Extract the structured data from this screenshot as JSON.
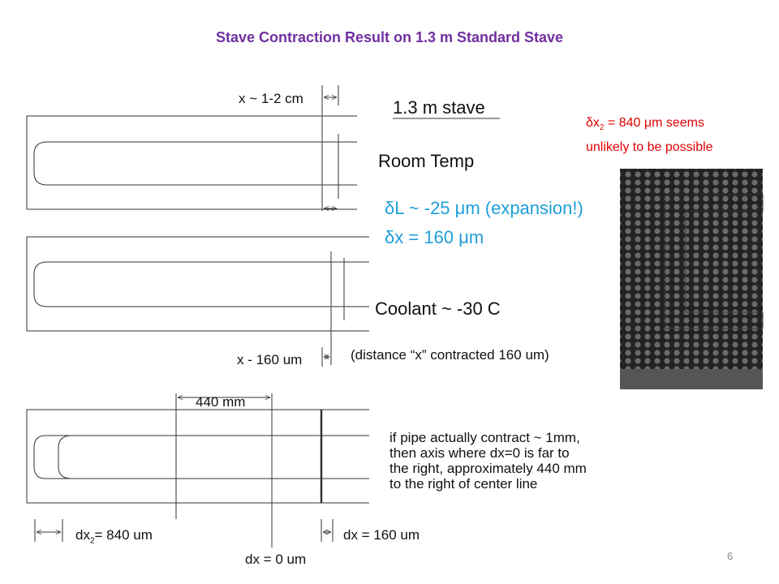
{
  "title": "Stave Contraction Result on 1.3 m Standard Stave",
  "diagram": {
    "label_x_range": "x ~ 1-2 cm",
    "stave_name": "1.3 m stave",
    "room_temp": "Room Temp",
    "delta_l": "δL ~ -25 μm (expansion!)",
    "delta_x": "δx = 160 μm",
    "coolant": "Coolant ~ -30 C",
    "x_minus": "x - 160 um",
    "contracted_note": "(distance “x” contracted 160 um)",
    "distance_440": "440 mm",
    "explanation": [
      "if pipe actually contract ~ 1mm,",
      "then axis where dx=0 is far to",
      "the right, approximately 440 mm",
      "to the right of center line"
    ],
    "dx2": {
      "main": "dx",
      "sub": "2",
      "rest": "= 840 um"
    },
    "dx_160": "dx = 160 um",
    "dx_0": "dx = 0 um"
  },
  "note": {
    "main": "δx",
    "sub": "2",
    "rest": " = 840 μm seems",
    "line2": "unlikely to be possible"
  },
  "page_number": "6"
}
